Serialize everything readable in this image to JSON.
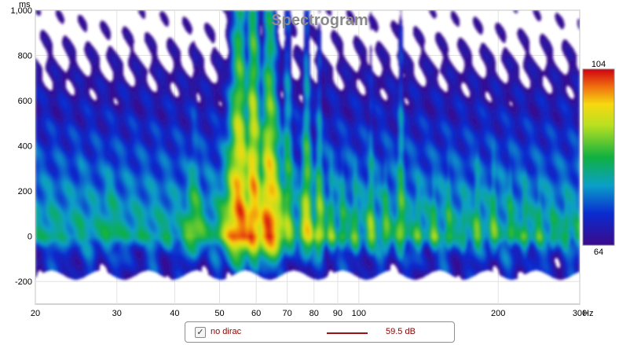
{
  "chart_data": {
    "type": "heatmap",
    "title": "Spectrogram",
    "x_unit": "Hz",
    "y_unit": "ms",
    "x_scale": "log",
    "xlim": [
      20,
      300
    ],
    "ylim": [
      -300,
      1000
    ],
    "x_ticks": [
      {
        "value": 20,
        "label": "20"
      },
      {
        "value": 30,
        "label": "30"
      },
      {
        "value": 40,
        "label": "40"
      },
      {
        "value": 50,
        "label": "50"
      },
      {
        "value": 60,
        "label": "60"
      },
      {
        "value": 70,
        "label": "70"
      },
      {
        "value": 80,
        "label": "80"
      },
      {
        "value": 90,
        "label": "90"
      },
      {
        "value": 100,
        "label": "100"
      },
      {
        "value": 200,
        "label": "200"
      },
      {
        "value": 300,
        "label": "300"
      }
    ],
    "y_ticks": [
      {
        "value": 1000,
        "label": "1,000"
      },
      {
        "value": 800,
        "label": "800"
      },
      {
        "value": 600,
        "label": "600"
      },
      {
        "value": 400,
        "label": "400"
      },
      {
        "value": 200,
        "label": "200"
      },
      {
        "value": 0,
        "label": "0"
      },
      {
        "value": -200,
        "label": "-200"
      }
    ],
    "colorbar": {
      "max": 104,
      "min": 64,
      "max_label": "104",
      "min_label": "64"
    },
    "grid": true,
    "series": [
      {
        "name": "no dirac",
        "value_label": "59.5 dB",
        "color": "#9b1111"
      }
    ],
    "ridges": [
      {
        "freq": 21.5,
        "level": 82,
        "decay_ms": 560,
        "width": 0.05
      },
      {
        "freq": 25,
        "level": 81,
        "decay_ms": 720,
        "width": 0.05
      },
      {
        "freq": 29,
        "level": 84,
        "decay_ms": 560,
        "width": 0.05
      },
      {
        "freq": 33.5,
        "level": 82,
        "decay_ms": 420,
        "width": 0.035
      },
      {
        "freq": 38.5,
        "level": 83,
        "decay_ms": 300,
        "width": 0.035
      },
      {
        "freq": 44,
        "level": 90,
        "decay_ms": 420,
        "width": 0.04
      },
      {
        "freq": 49,
        "level": 80,
        "decay_ms": 220,
        "width": 0.025
      },
      {
        "freq": 55,
        "level": 102,
        "decay_ms": 720,
        "width": 0.038
      },
      {
        "freq": 59,
        "level": 101,
        "decay_ms": 850,
        "width": 0.03
      },
      {
        "freq": 64,
        "level": 102,
        "decay_ms": 640,
        "width": 0.035
      },
      {
        "freq": 70,
        "level": 90,
        "decay_ms": 780,
        "width": 0.025
      },
      {
        "freq": 77,
        "level": 95,
        "decay_ms": 580,
        "width": 0.02
      },
      {
        "freq": 82,
        "level": 93,
        "decay_ms": 480,
        "width": 0.018
      },
      {
        "freq": 87,
        "level": 88,
        "decay_ms": 420,
        "width": 0.018
      },
      {
        "freq": 92,
        "level": 87,
        "decay_ms": 440,
        "width": 0.018
      },
      {
        "freq": 98,
        "level": 88,
        "decay_ms": 400,
        "width": 0.018
      },
      {
        "freq": 106,
        "level": 90,
        "decay_ms": 460,
        "width": 0.018
      },
      {
        "freq": 114,
        "level": 89,
        "decay_ms": 380,
        "width": 0.018
      },
      {
        "freq": 123,
        "level": 90,
        "decay_ms": 620,
        "width": 0.018
      },
      {
        "freq": 134,
        "level": 87,
        "decay_ms": 380,
        "width": 0.018
      },
      {
        "freq": 145,
        "level": 88,
        "decay_ms": 360,
        "width": 0.018
      },
      {
        "freq": 156,
        "level": 87,
        "decay_ms": 440,
        "width": 0.018
      },
      {
        "freq": 168,
        "level": 85,
        "decay_ms": 400,
        "width": 0.018
      },
      {
        "freq": 180,
        "level": 88,
        "decay_ms": 440,
        "width": 0.018
      },
      {
        "freq": 195,
        "level": 88,
        "decay_ms": 440,
        "width": 0.018
      },
      {
        "freq": 212,
        "level": 86,
        "decay_ms": 480,
        "width": 0.018
      },
      {
        "freq": 228,
        "level": 87,
        "decay_ms": 400,
        "width": 0.018
      },
      {
        "freq": 245,
        "level": 86,
        "decay_ms": 420,
        "width": 0.018
      },
      {
        "freq": 262,
        "level": 85,
        "decay_ms": 360,
        "width": 0.018
      },
      {
        "freq": 280,
        "level": 86,
        "decay_ms": 360,
        "width": 0.018
      },
      {
        "freq": 296,
        "level": 84,
        "decay_ms": 340,
        "width": 0.018
      }
    ]
  }
}
